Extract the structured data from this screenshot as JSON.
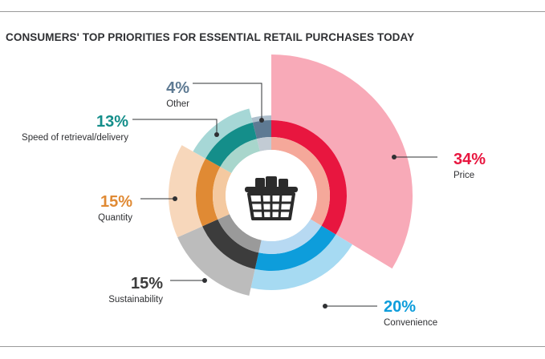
{
  "title": "CONSUMERS' TOP PRIORITIES FOR ESSENTIAL RETAIL PURCHASES TODAY",
  "icon": "shopping-basket-icon",
  "chart_data": {
    "type": "pie",
    "title": "CONSUMERS' TOP PRIORITIES FOR ESSENTIAL RETAIL PURCHASES TODAY",
    "unit": "%",
    "legend": "none",
    "slices": [
      {
        "label": "Price",
        "value": 34,
        "display": "34%",
        "color": "#e8163f",
        "light": "#f8aab8",
        "pale": "#f5a89a"
      },
      {
        "label": "Convenience",
        "value": 20,
        "display": "20%",
        "color": "#0d9ddb",
        "light": "#a6daf2",
        "pale": "#b7d9f2"
      },
      {
        "label": "Sustainability",
        "value": 15,
        "display": "15%",
        "color": "#3c3c3c",
        "light": "#bcbcbc",
        "pale": "#9a9a9a"
      },
      {
        "label": "Quantity",
        "value": 15,
        "display": "15%",
        "color": "#e08a34",
        "light": "#f7d7bb",
        "pale": "#f4c9a0"
      },
      {
        "label": "Speed of retrieval/delivery",
        "value": 13,
        "display": "13%",
        "color": "#148e8a",
        "light": "#a6d7d6",
        "pale": "#a8d6cc"
      },
      {
        "label": "Other",
        "value": 4,
        "display": "4%",
        "color": "#5e7a93",
        "light": "#aebfcc",
        "pale": "#c2cbd4"
      }
    ]
  }
}
